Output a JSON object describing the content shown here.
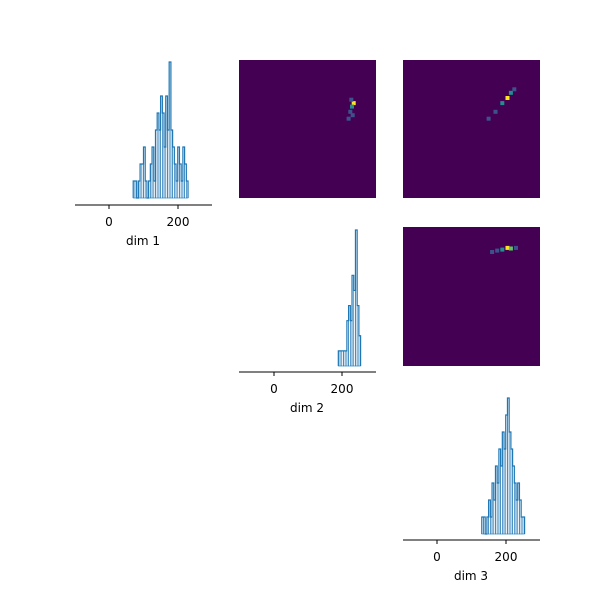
{
  "chart_data": [
    {
      "type": "histogram",
      "position": "row1-col1",
      "xlabel": "dim 1",
      "xticks": [
        0,
        200
      ],
      "xlim": [
        -100,
        300
      ],
      "bins": [
        [
          70,
          1
        ],
        [
          75,
          1
        ],
        [
          80,
          0
        ],
        [
          85,
          1
        ],
        [
          90,
          2
        ],
        [
          95,
          2
        ],
        [
          100,
          3
        ],
        [
          105,
          1
        ],
        [
          110,
          0
        ],
        [
          115,
          1
        ],
        [
          120,
          2
        ],
        [
          125,
          3
        ],
        [
          130,
          1
        ],
        [
          135,
          4
        ],
        [
          140,
          5
        ],
        [
          145,
          4
        ],
        [
          150,
          6
        ],
        [
          155,
          5
        ],
        [
          160,
          3
        ],
        [
          165,
          6
        ],
        [
          170,
          4
        ],
        [
          175,
          8
        ],
        [
          180,
          4
        ],
        [
          185,
          3
        ],
        [
          190,
          2
        ],
        [
          195,
          1
        ],
        [
          200,
          3
        ],
        [
          205,
          2
        ],
        [
          210,
          1
        ],
        [
          215,
          3
        ],
        [
          220,
          2
        ],
        [
          225,
          1
        ]
      ]
    },
    {
      "type": "heatmap",
      "position": "row1-col2",
      "description_data": [
        {
          "x": 235,
          "y": 175,
          "v": 6
        },
        {
          "x": 230,
          "y": 165,
          "v": 3
        },
        {
          "x": 228,
          "y": 185,
          "v": 2
        },
        {
          "x": 225,
          "y": 150,
          "v": 2
        },
        {
          "x": 232,
          "y": 140,
          "v": 1
        },
        {
          "x": 220,
          "y": 130,
          "v": 1
        }
      ]
    },
    {
      "type": "heatmap",
      "position": "row1-col3",
      "description_data": [
        {
          "x": 205,
          "y": 190,
          "v": 7
        },
        {
          "x": 190,
          "y": 175,
          "v": 4
        },
        {
          "x": 215,
          "y": 205,
          "v": 3
        },
        {
          "x": 170,
          "y": 150,
          "v": 2
        },
        {
          "x": 225,
          "y": 215,
          "v": 2
        },
        {
          "x": 150,
          "y": 130,
          "v": 1
        }
      ]
    },
    {
      "type": "histogram",
      "position": "row2-col2",
      "xlabel": "dim 2",
      "xticks": [
        0,
        200
      ],
      "xlim": [
        -100,
        300
      ],
      "bins": [
        [
          190,
          1
        ],
        [
          195,
          1
        ],
        [
          200,
          1
        ],
        [
          205,
          1
        ],
        [
          210,
          1
        ],
        [
          215,
          3
        ],
        [
          220,
          4
        ],
        [
          225,
          3
        ],
        [
          230,
          6
        ],
        [
          235,
          5
        ],
        [
          240,
          9
        ],
        [
          245,
          4
        ],
        [
          250,
          2
        ]
      ]
    },
    {
      "type": "heatmap",
      "position": "row2-col3",
      "description_data": [
        {
          "x": 205,
          "y": 240,
          "v": 7
        },
        {
          "x": 215,
          "y": 238,
          "v": 5
        },
        {
          "x": 190,
          "y": 235,
          "v": 3
        },
        {
          "x": 175,
          "y": 232,
          "v": 2
        },
        {
          "x": 230,
          "y": 240,
          "v": 2
        },
        {
          "x": 160,
          "y": 228,
          "v": 1
        }
      ]
    },
    {
      "type": "histogram",
      "position": "row3-col3",
      "xlabel": "dim 3",
      "xticks": [
        0,
        200
      ],
      "xlim": [
        -100,
        300
      ],
      "bins": [
        [
          130,
          1
        ],
        [
          135,
          1
        ],
        [
          140,
          0
        ],
        [
          145,
          1
        ],
        [
          150,
          2
        ],
        [
          155,
          1
        ],
        [
          160,
          3
        ],
        [
          165,
          2
        ],
        [
          170,
          4
        ],
        [
          175,
          3
        ],
        [
          180,
          5
        ],
        [
          185,
          4
        ],
        [
          190,
          6
        ],
        [
          195,
          5
        ],
        [
          200,
          7
        ],
        [
          205,
          8
        ],
        [
          210,
          6
        ],
        [
          215,
          5
        ],
        [
          220,
          4
        ],
        [
          225,
          3
        ],
        [
          230,
          2
        ],
        [
          235,
          3
        ],
        [
          240,
          2
        ],
        [
          245,
          1
        ],
        [
          250,
          1
        ]
      ]
    }
  ],
  "colors": {
    "line": "#1f77b4",
    "heatmap_bg": "#440154",
    "viridis": [
      "#440154",
      "#3b528b",
      "#21908d",
      "#5dc863",
      "#fde725"
    ]
  }
}
